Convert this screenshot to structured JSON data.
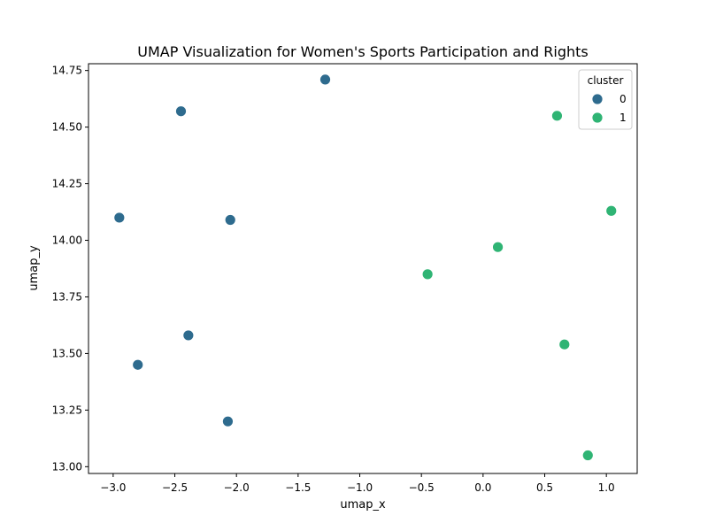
{
  "chart_data": {
    "type": "scatter",
    "title": "UMAP Visualization for Women's Sports Participation and Rights",
    "xlabel": "umap_x",
    "ylabel": "umap_y",
    "xlim": [
      -3.2,
      1.25
    ],
    "ylim": [
      12.97,
      14.78
    ],
    "xticks": [
      -3.0,
      -2.5,
      -2.0,
      -1.5,
      -1.0,
      -0.5,
      0.0,
      0.5,
      1.0
    ],
    "xtick_labels": [
      "−3.0",
      "−2.5",
      "−2.0",
      "−1.5",
      "−1.0",
      "−0.5",
      "0.0",
      "0.5",
      "1.0"
    ],
    "yticks": [
      13.0,
      13.25,
      13.5,
      13.75,
      14.0,
      14.25,
      14.5,
      14.75
    ],
    "ytick_labels": [
      "13.00",
      "13.25",
      "13.50",
      "13.75",
      "14.00",
      "14.25",
      "14.50",
      "14.75"
    ],
    "grid": false,
    "legend": {
      "title": "cluster",
      "placement": "upper right",
      "entries": [
        {
          "label": "0",
          "color": "#2e6b8e"
        },
        {
          "label": "1",
          "color": "#2fb474"
        }
      ]
    },
    "series": [
      {
        "name": "0",
        "color": "#2e6b8e",
        "points": [
          {
            "x": -1.28,
            "y": 14.71
          },
          {
            "x": -2.45,
            "y": 14.57
          },
          {
            "x": -2.95,
            "y": 14.1
          },
          {
            "x": -2.05,
            "y": 14.09
          },
          {
            "x": -2.39,
            "y": 13.58
          },
          {
            "x": -2.8,
            "y": 13.45
          },
          {
            "x": -2.07,
            "y": 13.2
          }
        ]
      },
      {
        "name": "1",
        "color": "#2fb474",
        "points": [
          {
            "x": 0.6,
            "y": 14.55
          },
          {
            "x": 1.04,
            "y": 14.13
          },
          {
            "x": 0.12,
            "y": 13.97
          },
          {
            "x": -0.45,
            "y": 13.85
          },
          {
            "x": 0.66,
            "y": 13.54
          },
          {
            "x": 0.85,
            "y": 13.05
          }
        ]
      }
    ]
  }
}
